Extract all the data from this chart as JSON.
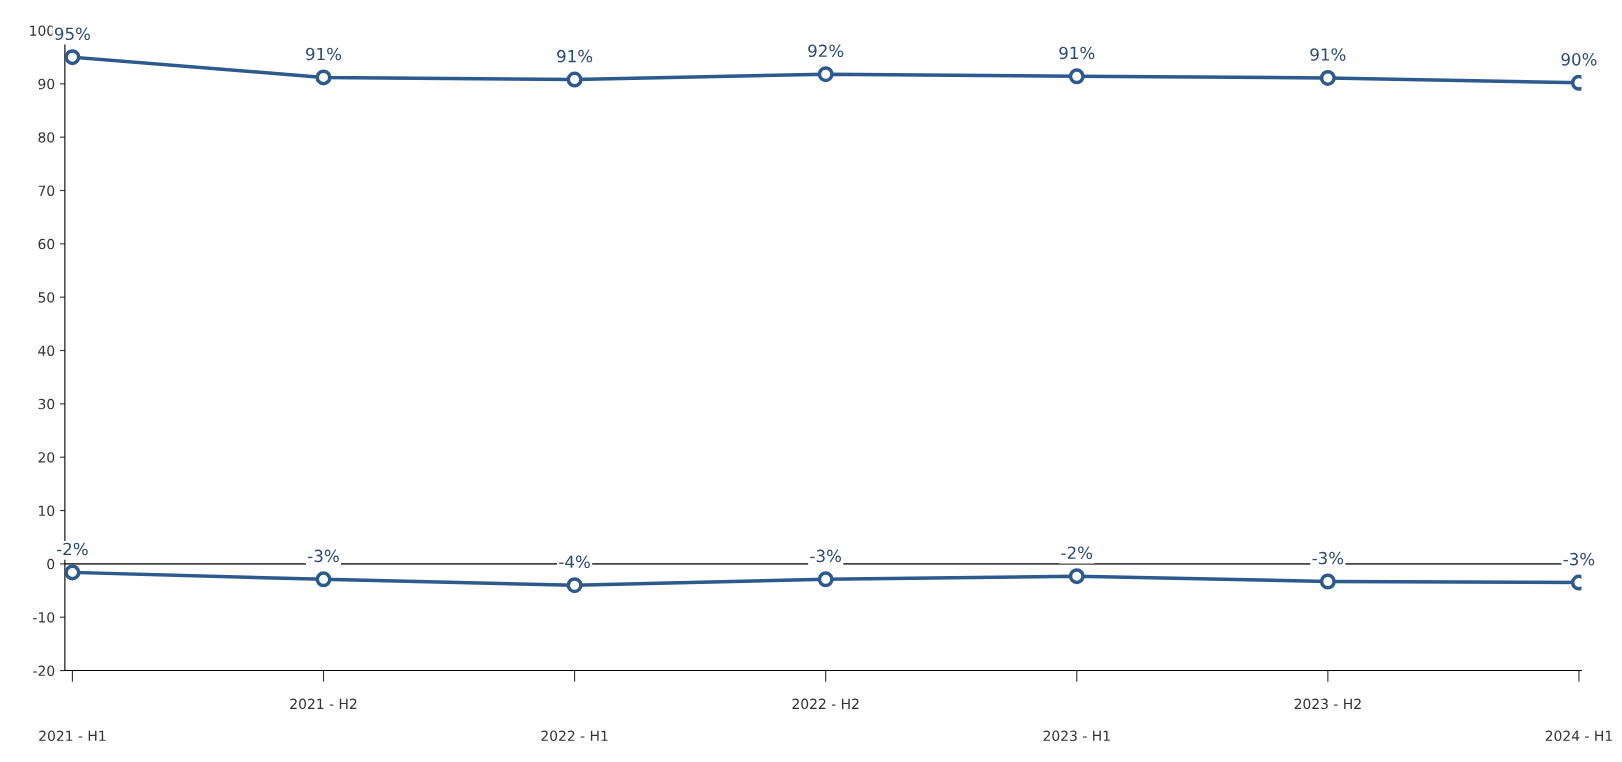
{
  "chart_data": {
    "type": "line",
    "categories": [
      "2021 - H1",
      "2021 - H2",
      "2022 - H1",
      "2022 - H2",
      "2023 - H1",
      "2023 - H2",
      "2024 - H1"
    ],
    "series": [
      {
        "color": "#2c5a8c",
        "values": [
          95,
          91.2,
          90.8,
          91.8,
          91.4,
          91.1,
          90.2
        ],
        "value_labels": [
          "95%",
          "91%",
          "91%",
          "92%",
          "91%",
          "91%",
          "90%"
        ]
      },
      {
        "color": "#2c5a8c",
        "values": [
          -1.6,
          -2.9,
          -4,
          -2.9,
          -2.3,
          -3.3,
          -3.5
        ],
        "value_labels": [
          "-2%",
          "-3%",
          "-4%",
          "-3%",
          "-2%",
          "-3%",
          "-3%"
        ]
      }
    ],
    "ylim": [
      -20,
      100
    ],
    "yticks": [
      -20,
      -10,
      0,
      10,
      20,
      30,
      40,
      50,
      60,
      70,
      80,
      90,
      100
    ],
    "ref_lines": [
      {
        "axis": "y",
        "value": 0,
        "color": "#444444"
      }
    ],
    "grid": false,
    "marker": "circle",
    "line_style": "solid"
  }
}
